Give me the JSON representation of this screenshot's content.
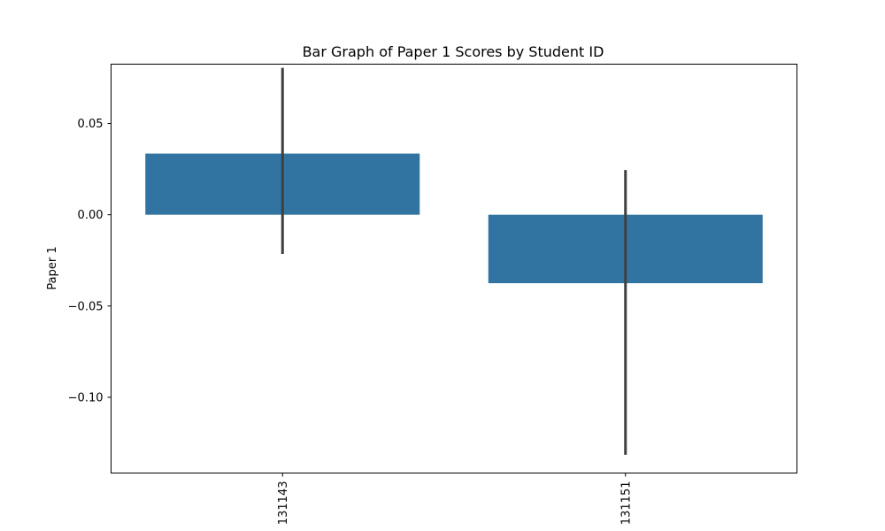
{
  "chart_data": {
    "type": "bar",
    "title": "Bar Graph of Paper 1 Scores by Student ID",
    "xlabel": "",
    "ylabel": "Paper 1",
    "categories": [
      "131143",
      "131151"
    ],
    "values": [
      0.0335,
      -0.0375
    ],
    "error_bars": [
      {
        "low": -0.0215,
        "high": 0.0805
      },
      {
        "low": -0.1315,
        "high": 0.0245
      }
    ],
    "ylim": [
      -0.1415,
      0.0825
    ],
    "yticks": [
      0.05,
      0.0,
      -0.05,
      -0.1
    ],
    "ytick_labels": [
      "0.05",
      "0.00",
      "−0.05",
      "−0.10"
    ],
    "grid": false,
    "legend": "none",
    "colors": {
      "bar": "#3274a1",
      "error_bar": "#3f3f3f",
      "axes": "#000000"
    }
  }
}
